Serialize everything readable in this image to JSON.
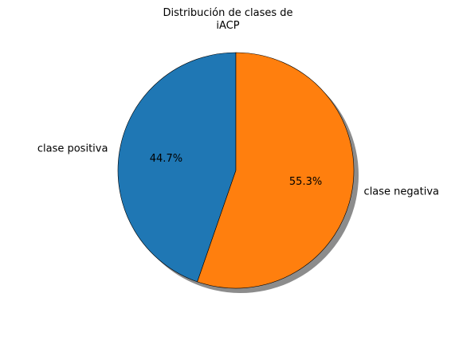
{
  "chart_data": {
    "type": "pie",
    "title": [
      "Distribución de clases de",
      "iACP"
    ],
    "slices": [
      {
        "label": "clase positiva",
        "value": 44.7,
        "pct_text": "44.7%",
        "color": "#1f77b4"
      },
      {
        "label": "clase negativa",
        "value": 55.3,
        "pct_text": "55.3%",
        "color": "#ff7f0e"
      }
    ],
    "start_angle_deg": 90,
    "direction": "counterclockwise",
    "shadow": true,
    "edge_color": "#000000"
  }
}
